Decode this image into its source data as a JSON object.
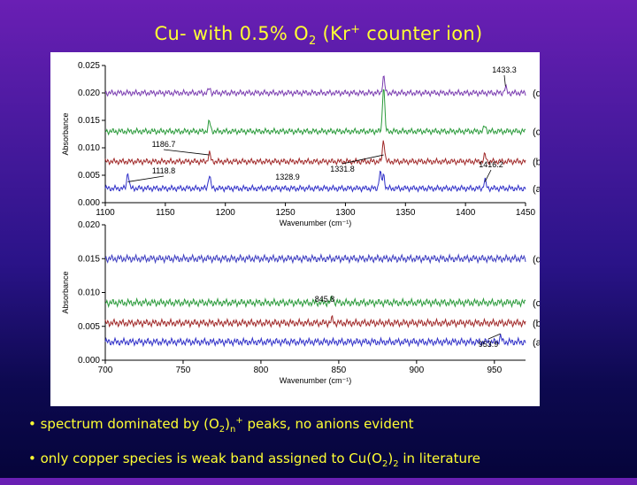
{
  "slide": {
    "title_main": "Cu- with 0.5% O",
    "title_sub": "2",
    "title_rest_1": " (Kr",
    "title_sup": "+",
    "title_rest_2": " counter ion)"
  },
  "chart_data": [
    {
      "type": "line",
      "xlabel": "Wavenumber (cm⁻¹)",
      "ylabel": "Absorbance",
      "xlim": [
        1100,
        1450
      ],
      "ylim": [
        0.0,
        0.025
      ],
      "x_ticks": [
        "1100",
        "1150",
        "1200",
        "1250",
        "1300",
        "1350",
        "1400",
        "1450"
      ],
      "y_ticks": [
        "0.000",
        "0.005",
        "0.010",
        "0.015",
        "0.020",
        "0.025"
      ],
      "series": [
        {
          "name": "(a)",
          "baseline": 0.0026,
          "color": "#3030c8",
          "peaks": [
            [
              1118.8,
              0.003
            ],
            [
              1186.7,
              0.0025
            ],
            [
              1328.9,
              0.003
            ],
            [
              1331.8,
              0.0025
            ],
            [
              1416.2,
              0.0015
            ]
          ]
        },
        {
          "name": "(b)",
          "baseline": 0.0075,
          "color": "#a02828",
          "peaks": [
            [
              1186.7,
              0.0015
            ],
            [
              1331.8,
              0.004
            ],
            [
              1416.2,
              0.0012
            ]
          ]
        },
        {
          "name": "(c)",
          "baseline": 0.013,
          "color": "#2a9a3a",
          "peaks": [
            [
              1186.7,
              0.0018
            ],
            [
              1331.8,
              0.0085
            ],
            [
              1416.2,
              0.001
            ]
          ]
        },
        {
          "name": "(d)",
          "baseline": 0.02,
          "color": "#7a3cb0",
          "peaks": [
            [
              1186.7,
              0.0008
            ],
            [
              1331.8,
              0.003
            ],
            [
              1433.3,
              0.001
            ]
          ]
        }
      ],
      "annotations": [
        "1433.3",
        "1186.7",
        "1118.8",
        "1328.9",
        "1331.8",
        "1416.2"
      ]
    },
    {
      "type": "line",
      "xlabel": "Wavenumber (cm⁻¹)",
      "ylabel": "Absorbance",
      "xlim": [
        700,
        970
      ],
      "ylim": [
        0.0,
        0.02
      ],
      "x_ticks": [
        "700",
        "750",
        "800",
        "850",
        "900",
        "950"
      ],
      "y_ticks": [
        "0.000",
        "0.005",
        "0.010",
        "0.015",
        "0.020"
      ],
      "series": [
        {
          "name": "(a)",
          "baseline": 0.0027,
          "color": "#3030c8",
          "peaks": [
            [
              953.9,
              0.0008
            ]
          ]
        },
        {
          "name": "(b)",
          "baseline": 0.0055,
          "color": "#a02828",
          "peaks": [
            [
              845.8,
              0.0006
            ]
          ]
        },
        {
          "name": "(c)",
          "baseline": 0.0085,
          "color": "#2a9a3a",
          "peaks": [
            [
              845.8,
              0.0008
            ]
          ]
        },
        {
          "name": "(d)",
          "baseline": 0.015,
          "color": "#3c3cc0",
          "peaks": []
        }
      ],
      "annotations": [
        "845.8",
        "953.9"
      ]
    }
  ],
  "bullets": [
    {
      "prefix": "• spectrum dominated by (O",
      "sub": "2",
      "mid": ")",
      "sub2": "n",
      "sup": "+",
      "suffix": " peaks, no anions evident"
    },
    {
      "prefix": "• only copper species is weak band assigned to Cu(O",
      "sub": "2",
      "mid": ")",
      "sub2": "2",
      "suffix": " in literature"
    }
  ]
}
